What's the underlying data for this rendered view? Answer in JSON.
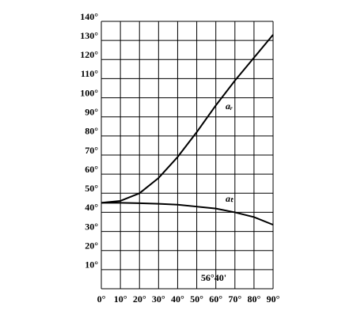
{
  "chart_data": {
    "type": "line",
    "x": [
      0,
      10,
      20,
      30,
      40,
      50,
      60,
      70,
      80,
      90
    ],
    "series": [
      {
        "name": "aᵣ",
        "color": "#000000",
        "values": [
          45,
          46,
          50,
          58,
          69,
          82,
          96,
          109,
          121,
          133
        ]
      },
      {
        "name": "aₜ",
        "color": "#000000",
        "values": [
          45,
          45,
          44.8,
          44.5,
          44,
          43,
          42,
          40,
          37.5,
          33.5
        ]
      }
    ],
    "annotation": "56°40'",
    "xlim": [
      0,
      90
    ],
    "xticks": [
      {
        "value": 0,
        "label": "0°"
      },
      {
        "value": 10,
        "label": "10°"
      },
      {
        "value": 20,
        "label": "20°"
      },
      {
        "value": 30,
        "label": "30°"
      },
      {
        "value": 40,
        "label": "40°"
      },
      {
        "value": 50,
        "label": "50°"
      },
      {
        "value": 60,
        "label": "60°"
      },
      {
        "value": 70,
        "label": "70°"
      },
      {
        "value": 80,
        "label": "80°"
      },
      {
        "value": 90,
        "label": "90°"
      }
    ],
    "ylim": [
      0,
      140
    ],
    "yticks": [
      {
        "value": 10,
        "label": "10°"
      },
      {
        "value": 20,
        "label": "20°"
      },
      {
        "value": 30,
        "label": "30°"
      },
      {
        "value": 40,
        "label": "40°"
      },
      {
        "value": 50,
        "label": "50°"
      },
      {
        "value": 60,
        "label": "60°"
      },
      {
        "value": 70,
        "label": "70°"
      },
      {
        "value": 80,
        "label": "80°"
      },
      {
        "value": 90,
        "label": "90°"
      },
      {
        "value": 100,
        "label": "100°"
      },
      {
        "value": 110,
        "label": "110°"
      },
      {
        "value": 120,
        "label": "120°"
      },
      {
        "value": 130,
        "label": "130°"
      },
      {
        "value": 140,
        "label": "140°"
      }
    ],
    "grid": true
  }
}
